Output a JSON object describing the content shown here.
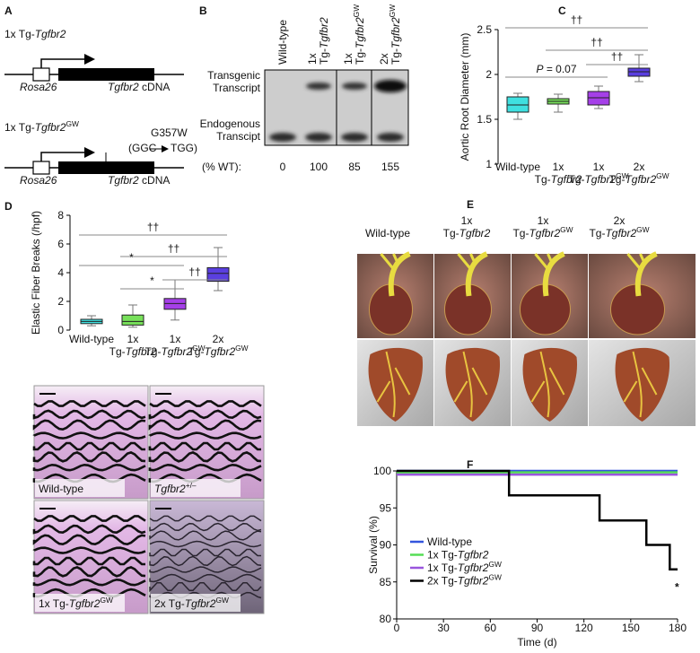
{
  "panels": [
    "A",
    "B",
    "C",
    "D",
    "E",
    "F"
  ],
  "panel_a": {
    "constructs": [
      {
        "title": {
          "text": "1x Tg-",
          "italic": "Tgfbr2"
        },
        "promoter": "Rosa26",
        "cdna": {
          "italic": "Tgfbr2",
          "suffix": " cDNA"
        }
      },
      {
        "title": {
          "text": "1x Tg-",
          "italic": "Tgfbr2",
          "sup": "GW"
        },
        "promoter": "Rosa26",
        "cdna": {
          "italic": "Tgfbr2",
          "suffix": " cDNA"
        },
        "mutation": "G357W",
        "codon_from": "(GGC",
        "codon_to": "TGG)"
      }
    ]
  },
  "panel_b": {
    "lanes": [
      {
        "line1": "Wild-type"
      },
      {
        "line1": "1x",
        "text": "Tg-",
        "italic": "Tgfbr2"
      },
      {
        "line1": "1x",
        "text": "Tg-",
        "italic": "Tgfbr2",
        "sup": "GW"
      },
      {
        "line1": "2x",
        "text": "Tg-",
        "italic": "Tgfbr2",
        "sup": "GW"
      }
    ],
    "rows": [
      [
        "Transgenic",
        "Transcript"
      ],
      [
        "Endogenous",
        "Transcipt"
      ]
    ],
    "percent_label": "(% WT):",
    "percent_wt": [
      0,
      100,
      85,
      155
    ]
  },
  "chart_data": [
    {
      "type": "box",
      "ylabel": "Aortic Root Diameter (mm)",
      "ylim": [
        1,
        2.5
      ],
      "yticks": [
        1,
        1.5,
        2,
        2.5
      ],
      "categories": [
        {
          "line1": "Wild-type"
        },
        {
          "line1": "1x",
          "text": "Tg-",
          "italic": "Tgfbr2"
        },
        {
          "line1": "1x",
          "text": "Tg-",
          "italic": "Tgfbr2",
          "sup": "GW"
        },
        {
          "line1": "2x",
          "text": "Tg-",
          "italic": "Tgfbr2",
          "sup": "GW"
        }
      ],
      "boxes": [
        {
          "min": 1.5,
          "q1": 1.58,
          "median": 1.66,
          "q3": 1.75,
          "max": 1.79,
          "color": "#3fe0e0"
        },
        {
          "min": 1.58,
          "q1": 1.67,
          "median": 1.7,
          "q3": 1.73,
          "max": 1.78,
          "color": "#77e05a"
        },
        {
          "min": 1.62,
          "q1": 1.66,
          "median": 1.74,
          "q3": 1.81,
          "max": 1.87,
          "color": "#a53fe8"
        },
        {
          "min": 1.92,
          "q1": 1.98,
          "median": 2.03,
          "q3": 2.07,
          "max": 2.22,
          "color": "#5a3fe0"
        }
      ],
      "brackets": [
        {
          "from": 0,
          "to": 3,
          "label": {
            "text": "††"
          }
        },
        {
          "from": 1,
          "to": 3,
          "label": {
            "text": "††"
          }
        },
        {
          "from": 0,
          "to": 2,
          "label": {
            "italic": "P",
            "suffix": " = 0.07"
          }
        },
        {
          "from": 2,
          "to": 3,
          "label": {
            "text": "††"
          }
        }
      ]
    },
    {
      "type": "box",
      "ylabel": "Elastic Fiber Breaks (/hpf)",
      "ylim": [
        0,
        8
      ],
      "yticks": [
        0,
        2,
        4,
        6,
        8
      ],
      "categories": [
        {
          "line1": "Wild-type"
        },
        {
          "line1": "1x",
          "text": "Tg-",
          "italic": "Tgfbr2"
        },
        {
          "line1": "1x",
          "text": "Tg-",
          "italic": "Tgfbr2",
          "sup": "GW"
        },
        {
          "line1": "2x",
          "text": "Tg-",
          "italic": "Tgfbr2",
          "sup": "GW"
        }
      ],
      "boxes": [
        {
          "min": 0.3,
          "q1": 0.45,
          "median": 0.6,
          "q3": 0.75,
          "max": 1.0,
          "color": "#3fe0e0"
        },
        {
          "min": 0.2,
          "q1": 0.35,
          "median": 0.6,
          "q3": 1.05,
          "max": 1.75,
          "color": "#77e05a"
        },
        {
          "min": 0.7,
          "q1": 1.45,
          "median": 1.85,
          "q3": 2.2,
          "max": 3.5,
          "color": "#a53fe8"
        },
        {
          "min": 2.75,
          "q1": 3.4,
          "median": 3.95,
          "q3": 4.35,
          "max": 5.75,
          "color": "#5a3fe0"
        }
      ],
      "brackets": [
        {
          "from": 0,
          "to": 3,
          "label": {
            "text": "††"
          }
        },
        {
          "from": 1,
          "to": 3,
          "label": {
            "text": "††"
          }
        },
        {
          "from": 2,
          "to": 3,
          "label": {
            "text": "††"
          }
        },
        {
          "from": 0,
          "to": 2,
          "label": {
            "text": "*"
          }
        },
        {
          "from": 1,
          "to": 2,
          "label": {
            "text": "*"
          }
        }
      ]
    },
    {
      "type": "line",
      "xlabel": "Time (d)",
      "ylabel": "Survival (%)",
      "xlim": [
        0,
        180
      ],
      "ylim": [
        80,
        100
      ],
      "xticks": [
        0,
        30,
        60,
        90,
        120,
        150,
        180
      ],
      "yticks": [
        80,
        85,
        90,
        95,
        100
      ],
      "annotation": "*",
      "series": [
        {
          "name": {
            "text": "Wild-type"
          },
          "color": "#3355dd",
          "x": [
            0,
            180
          ],
          "values": [
            100,
            100
          ]
        },
        {
          "name": {
            "text": "1x Tg-",
            "italic": "Tgfbr2"
          },
          "color": "#55dd55",
          "x": [
            0,
            180
          ],
          "values": [
            99.8,
            99.8
          ]
        },
        {
          "name": {
            "text": "1x Tg-",
            "italic": "Tgfbr2",
            "sup": "GW"
          },
          "color": "#9955dd",
          "x": [
            0,
            180
          ],
          "values": [
            99.5,
            99.5
          ]
        },
        {
          "name": {
            "text": "2x Tg-",
            "italic": "Tgfbr2",
            "sup": "GW"
          },
          "color": "#000000",
          "x": [
            0,
            72,
            72,
            130,
            130,
            160,
            160,
            175,
            175,
            180
          ],
          "values": [
            100,
            100,
            96.7,
            96.7,
            93.3,
            93.3,
            90,
            90,
            86.7,
            86.7
          ]
        }
      ]
    }
  ],
  "panel_e": {
    "columns": [
      {
        "line1": "Wild-type"
      },
      {
        "line1": "1x",
        "text": "Tg-",
        "italic": "Tgfbr2"
      },
      {
        "line1": "1x",
        "text": "Tg-",
        "italic": "Tgfbr2",
        "sup": "GW"
      },
      {
        "line1": "2x",
        "text": "Tg-",
        "italic": "Tgfbr2",
        "sup": "GW"
      }
    ]
  },
  "histology": {
    "panels": [
      {
        "text": "Wild-type"
      },
      {
        "italic": "Tgfbr2",
        "sup": "+/–"
      },
      {
        "text": "1x Tg-",
        "italic": "Tgfbr2",
        "sup": "GW"
      },
      {
        "text": "2x Tg-",
        "italic": "Tgfbr2",
        "sup": "GW"
      }
    ]
  }
}
